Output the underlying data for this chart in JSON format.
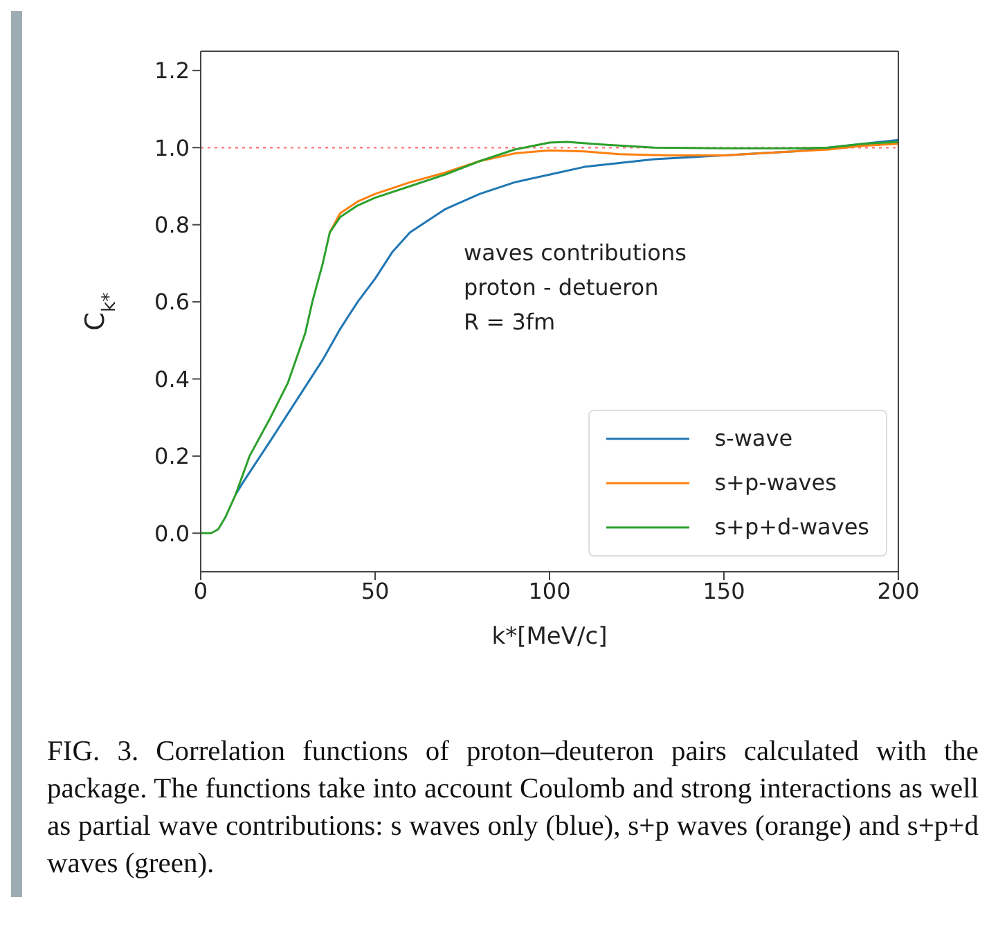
{
  "chart_data": {
    "type": "line",
    "xlabel": "k*[MeV/c]",
    "ylabel": "C$_{k*}$",
    "xlim": [
      0,
      200
    ],
    "xticks": [
      0,
      50,
      100,
      150,
      200
    ],
    "ylim": [
      -0.1,
      1.25
    ],
    "yticks": [
      {
        "value": 0,
        "label": "0.0"
      },
      0.2,
      0.4,
      0.6,
      0.8,
      {
        "value": 1,
        "label": "1.0"
      },
      1.2
    ],
    "grid": false,
    "legend": "bottom right",
    "marker": "none",
    "line_style": "solid",
    "ref_lines": [
      {
        "axis": "y",
        "value": 1.0,
        "color": "#ff8080",
        "line_style": "dotted"
      }
    ],
    "annotations": [
      "waves contributions",
      "proton - detueron",
      "R = 3fm",
      "FIG. 3.  Correlation functions of proton–deuteron pairs calculated with the package.  The functions take into account Coulomb and strong interactions as well as partial wave contributions: s waves only (blue), s+p waves (orange) and s+p+d waves (green)."
    ],
    "series": [
      {
        "name": "s-wave",
        "color": "#1f77b4",
        "x": [
          10,
          12,
          20,
          25,
          30,
          35,
          40,
          45,
          50,
          55,
          60,
          70,
          80,
          90,
          100,
          110,
          120,
          130,
          140,
          150,
          160,
          170,
          180,
          190,
          200
        ],
        "values": [
          0.1,
          0.13,
          0.24,
          0.31,
          0.38,
          0.45,
          0.53,
          0.6,
          0.66,
          0.73,
          0.78,
          0.84,
          0.88,
          0.91,
          0.93,
          0.95,
          0.96,
          0.97,
          0.975,
          0.98,
          0.985,
          0.99,
          1.0,
          1.01,
          1.02
        ]
      },
      {
        "name": "s+p-waves",
        "color": "#ff7f0e",
        "x": [
          37,
          40,
          45,
          50,
          60,
          70,
          80,
          90,
          100,
          110,
          120,
          134,
          150,
          170,
          180,
          190,
          200
        ],
        "values": [
          0.78,
          0.83,
          0.86,
          0.88,
          0.91,
          0.935,
          0.965,
          0.985,
          0.993,
          0.99,
          0.983,
          0.98,
          0.98,
          0.99,
          0.995,
          1.005,
          1.01
        ]
      },
      {
        "name": "s+p+d-waves",
        "color": "#2ca02c",
        "x": [
          0,
          3,
          5,
          7,
          10,
          14,
          20,
          25,
          30,
          32,
          35,
          37,
          40,
          45,
          50,
          60,
          70,
          80,
          90,
          100,
          105,
          115,
          130,
          150,
          170,
          180,
          190,
          200
        ],
        "values": [
          0,
          0,
          0.01,
          0.04,
          0.1,
          0.2,
          0.3,
          0.39,
          0.52,
          0.6,
          0.7,
          0.78,
          0.82,
          0.85,
          0.87,
          0.9,
          0.93,
          0.965,
          0.995,
          1.013,
          1.015,
          1.008,
          1.0,
          0.998,
          0.998,
          1.0,
          1.01,
          1.015
        ]
      }
    ]
  }
}
